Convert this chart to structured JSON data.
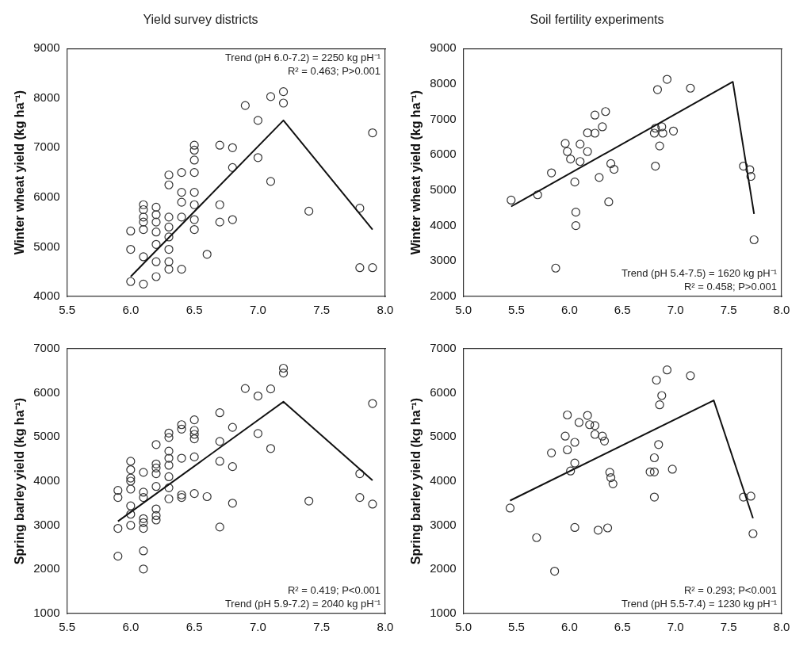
{
  "chart_data": [
    {
      "type": "scatter",
      "title": "Yield survey districts",
      "ylabel": "Winter wheat yield (kg ha⁻¹)",
      "xlim": [
        5.5,
        8.0
      ],
      "xticks": [
        5.5,
        {
          "value": 6,
          "label": "6.0"
        },
        6.5,
        {
          "value": 7,
          "label": "7.0"
        },
        7.5,
        {
          "value": 8,
          "label": "8.0"
        }
      ],
      "ylim": [
        4000,
        9000
      ],
      "yticks": [
        4000,
        5000,
        6000,
        7000,
        8000,
        9000
      ],
      "grid": false,
      "legend": false,
      "marker": "circle",
      "annotations": [
        "Trend (pH 6.0-7.2) = 2250 kg pH⁻¹",
        "R² = 0.463; P>0.001"
      ],
      "series": [
        {
          "type": "scatter",
          "color": "#333333",
          "x": [
            6.0,
            6.0,
            6.0,
            6.1,
            6.1,
            6.1,
            6.1,
            6.1,
            6.1,
            6.1,
            6.2,
            6.2,
            6.2,
            6.2,
            6.2,
            6.2,
            6.2,
            6.3,
            6.3,
            6.3,
            6.3,
            6.3,
            6.3,
            6.3,
            6.3,
            6.4,
            6.4,
            6.4,
            6.4,
            6.4,
            6.5,
            6.5,
            6.5,
            6.5,
            6.5,
            6.5,
            6.5,
            6.5,
            6.6,
            6.7,
            6.7,
            6.7,
            6.8,
            6.8,
            6.8,
            6.9,
            7.0,
            7.0,
            7.1,
            7.1,
            7.2,
            7.2,
            7.4,
            7.8,
            7.8,
            7.9,
            7.9
          ],
          "values": [
            5320,
            4950,
            4300,
            5850,
            5750,
            5600,
            5500,
            5350,
            4800,
            4250,
            5800,
            5650,
            5500,
            5300,
            5050,
            4700,
            4400,
            6450,
            6250,
            5600,
            5400,
            5200,
            4950,
            4700,
            4550,
            6500,
            6100,
            5900,
            5600,
            4550,
            7050,
            6950,
            6750,
            6500,
            6100,
            5850,
            5550,
            5350,
            4850,
            7050,
            5850,
            5500,
            7000,
            6600,
            5550,
            7850,
            7550,
            6800,
            8030,
            6320,
            8130,
            7900,
            5720,
            5780,
            4580,
            7300,
            4580
          ]
        },
        {
          "type": "line",
          "marker": "none",
          "color": "#111111",
          "x": [
            6.0,
            7.2,
            7.9
          ],
          "values": [
            4400,
            7550,
            5350
          ]
        }
      ]
    },
    {
      "type": "scatter",
      "title": "Soil fertility experiments",
      "ylabel": "Winter wheat yield (kg ha⁻¹)",
      "xlim": [
        5.0,
        8.0
      ],
      "xticks": [
        {
          "value": 5,
          "label": "5.0"
        },
        5.5,
        {
          "value": 6,
          "label": "6.0"
        },
        6.5,
        {
          "value": 7,
          "label": "7.0"
        },
        7.5,
        {
          "value": 8,
          "label": "8.0"
        }
      ],
      "ylim": [
        2000,
        9000
      ],
      "yticks": [
        2000,
        3000,
        4000,
        5000,
        6000,
        7000,
        8000,
        9000
      ],
      "grid": false,
      "legend": false,
      "marker": "circle",
      "annotations": [
        "Trend (pH 5.4-7.5) = 1620 kg pH⁻¹",
        "R² = 0.458; P>0.001"
      ],
      "series": [
        {
          "type": "scatter",
          "color": "#333333",
          "x": [
            5.45,
            5.7,
            5.83,
            5.87,
            5.96,
            5.98,
            6.01,
            6.05,
            6.06,
            6.06,
            6.1,
            6.1,
            6.17,
            6.17,
            6.24,
            6.24,
            6.28,
            6.31,
            6.34,
            6.37,
            6.39,
            6.42,
            6.8,
            6.81,
            6.81,
            6.83,
            6.85,
            6.87,
            6.88,
            6.92,
            6.98,
            7.14,
            7.64,
            7.7,
            7.71,
            7.74
          ],
          "values": [
            4720,
            4870,
            5490,
            2800,
            6320,
            6090,
            5880,
            5230,
            4380,
            4000,
            6300,
            5810,
            6090,
            6620,
            6610,
            7120,
            5360,
            6790,
            7220,
            4670,
            5750,
            5590,
            6610,
            6750,
            5680,
            7840,
            6250,
            6790,
            6610,
            8130,
            6670,
            7880,
            5680,
            5580,
            5390,
            3600
          ]
        },
        {
          "type": "line",
          "marker": "none",
          "color": "#111111",
          "x": [
            5.45,
            7.54,
            7.74
          ],
          "values": [
            4540,
            8060,
            4330
          ]
        }
      ]
    },
    {
      "type": "scatter",
      "ylabel": "Spring barley yield (kg ha⁻¹)",
      "xlim": [
        5.5,
        8.0
      ],
      "xticks": [
        5.5,
        {
          "value": 6,
          "label": "6.0"
        },
        6.5,
        {
          "value": 7,
          "label": "7.0"
        },
        7.5,
        {
          "value": 8,
          "label": "8.0"
        }
      ],
      "ylim": [
        1000,
        7000
      ],
      "yticks": [
        1000,
        2000,
        3000,
        4000,
        5000,
        6000,
        7000
      ],
      "grid": false,
      "legend": false,
      "marker": "circle",
      "annotations": [
        "R² = 0.419; P<0.001",
        "Trend (pH 5.9-7.2) = 2040 kg pH⁻¹"
      ],
      "series": [
        {
          "type": "scatter",
          "color": "#333333",
          "x": [
            5.9,
            5.9,
            5.9,
            5.9,
            6.0,
            6.0,
            6.0,
            6.0,
            6.0,
            6.0,
            6.0,
            6.0,
            6.1,
            6.1,
            6.1,
            6.1,
            6.1,
            6.1,
            6.1,
            6.1,
            6.2,
            6.2,
            6.2,
            6.2,
            6.2,
            6.2,
            6.2,
            6.2,
            6.3,
            6.3,
            6.3,
            6.3,
            6.3,
            6.3,
            6.3,
            6.3,
            6.4,
            6.4,
            6.4,
            6.4,
            6.4,
            6.5,
            6.5,
            6.5,
            6.5,
            6.5,
            6.5,
            6.6,
            6.7,
            6.7,
            6.7,
            6.7,
            6.8,
            6.8,
            6.8,
            6.9,
            7.0,
            7.0,
            7.1,
            7.1,
            7.2,
            7.2,
            7.4,
            7.8,
            7.8,
            7.9,
            7.9
          ],
          "values": [
            2930,
            2300,
            3790,
            3630,
            4450,
            4260,
            4070,
            4000,
            3820,
            3440,
            3250,
            3000,
            4200,
            3750,
            3630,
            3150,
            3060,
            2930,
            2420,
            2010,
            4830,
            4390,
            4300,
            4170,
            3880,
            3370,
            3220,
            3120,
            5090,
            4990,
            4680,
            4520,
            4360,
            4100,
            3850,
            3600,
            5280,
            5180,
            4520,
            3690,
            3630,
            5390,
            5150,
            5060,
            4960,
            4550,
            3720,
            3650,
            5550,
            4900,
            4450,
            2960,
            5220,
            4330,
            3500,
            6100,
            5930,
            5080,
            6090,
            4740,
            6560,
            6450,
            3550,
            4170,
            3630,
            5760,
            3480
          ]
        },
        {
          "type": "line",
          "marker": "none",
          "color": "#111111",
          "x": [
            5.9,
            7.2,
            7.9
          ],
          "values": [
            3090,
            5800,
            4020
          ]
        }
      ]
    },
    {
      "type": "scatter",
      "ylabel": "Spring barley yield (kg ha⁻¹)",
      "xlim": [
        5.0,
        8.0
      ],
      "xticks": [
        {
          "value": 5,
          "label": "5.0"
        },
        5.5,
        {
          "value": 6,
          "label": "6.0"
        },
        6.5,
        {
          "value": 7,
          "label": "7.0"
        },
        7.5,
        {
          "value": 8,
          "label": "8.0"
        }
      ],
      "ylim": [
        1000,
        7000
      ],
      "yticks": [
        1000,
        2000,
        3000,
        4000,
        5000,
        6000,
        7000
      ],
      "grid": false,
      "legend": false,
      "marker": "circle",
      "annotations": [
        "R² = 0.293; P<0.001",
        "Trend (pH 5.5-7.4) = 1230 kg pH⁻¹"
      ],
      "series": [
        {
          "type": "scatter",
          "color": "#333333",
          "x": [
            5.44,
            5.69,
            5.83,
            5.86,
            5.96,
            5.98,
            5.98,
            6.01,
            6.05,
            6.05,
            6.05,
            6.09,
            6.17,
            6.19,
            6.24,
            6.24,
            6.27,
            6.31,
            6.33,
            6.36,
            6.38,
            6.39,
            6.41,
            6.76,
            6.8,
            6.8,
            6.8,
            6.82,
            6.84,
            6.85,
            6.87,
            6.92,
            6.97,
            7.14,
            7.64,
            7.71,
            7.73
          ],
          "values": [
            3390,
            2720,
            4640,
            1960,
            5020,
            5500,
            4710,
            4230,
            4410,
            4880,
            2950,
            5330,
            5490,
            5280,
            5260,
            5060,
            2890,
            5020,
            4910,
            2940,
            4200,
            4080,
            3940,
            4210,
            4210,
            4530,
            3640,
            6290,
            4830,
            5730,
            5940,
            6520,
            4270,
            6390,
            3640,
            3660,
            2810
          ]
        },
        {
          "type": "line",
          "marker": "none",
          "color": "#111111",
          "x": [
            5.44,
            7.36,
            7.73
          ],
          "values": [
            3560,
            5830,
            3160
          ]
        }
      ]
    }
  ]
}
